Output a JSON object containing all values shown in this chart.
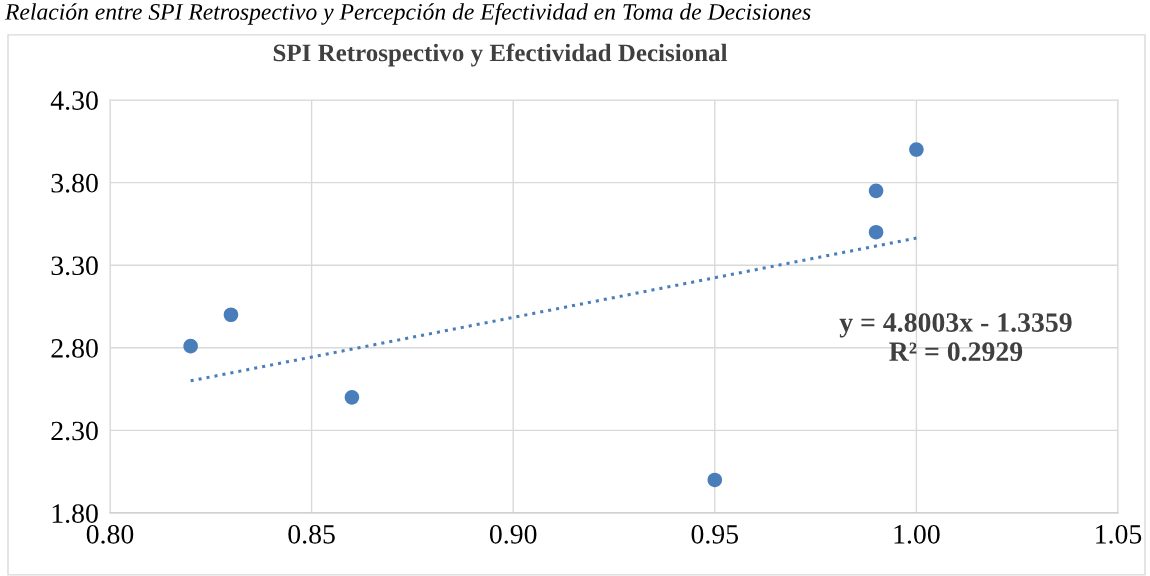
{
  "chart_data": {
    "type": "scatter",
    "title": "SPI Retrospectivo y Efectividad Decisional",
    "annotations": [
      "Relación entre SPI Retrospectivo y Percepción de Efectividad en Toma de Decisiones",
      "y = 4.8003x - 1.3359\nR² = 0.2929"
    ],
    "series": [
      {
        "color": "#4a7ebb",
        "marker": "circle",
        "x": [
          0.82,
          0.83,
          0.86,
          0.95,
          0.99,
          0.99,
          1.0
        ],
        "values": [
          2.81,
          3.0,
          2.5,
          2.0,
          3.75,
          3.5,
          4.0
        ]
      },
      {
        "type": "line",
        "color": "#4a7ebb",
        "line_style": "dotted",
        "marker": "none",
        "x": [
          0.82,
          1.0
        ],
        "values": [
          2.6,
          3.464
        ]
      }
    ],
    "xlim": [
      0.8,
      1.05
    ],
    "ylim": [
      1.8,
      4.3
    ],
    "xticks": [
      {
        "value": 0.8,
        "label": "0.80"
      },
      {
        "value": 0.85,
        "label": "0.85"
      },
      {
        "value": 0.9,
        "label": "0.90"
      },
      {
        "value": 0.95,
        "label": "0.95"
      },
      {
        "value": 1.0,
        "label": "1.00"
      },
      {
        "value": 1.05,
        "label": "1.05"
      }
    ],
    "yticks": [
      {
        "value": 1.8,
        "label": "1.80"
      },
      {
        "value": 2.3,
        "label": "2.30"
      },
      {
        "value": 2.8,
        "label": "2.80"
      },
      {
        "value": 3.3,
        "label": "3.30"
      },
      {
        "value": 3.8,
        "label": "3.80"
      },
      {
        "value": 4.3,
        "label": "4.30"
      }
    ],
    "grid": true
  }
}
